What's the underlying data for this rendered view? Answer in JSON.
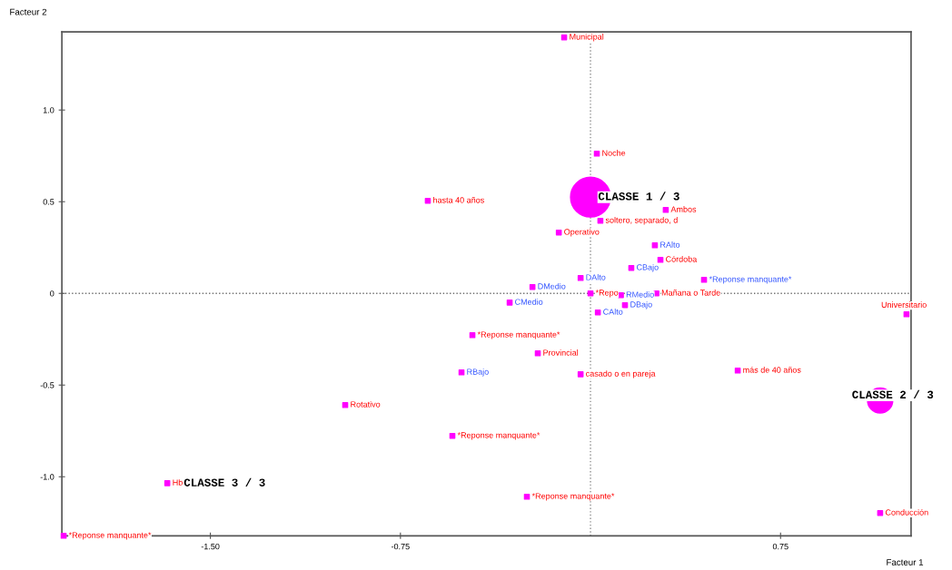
{
  "chart_data": {
    "type": "scatter",
    "xlabel": "Facteur 1",
    "ylabel": "Facteur 2",
    "xlim": [
      -2.086,
      1.265
    ],
    "ylim": [
      -1.322,
      1.426
    ],
    "xticks": [
      {
        "value": -1.5,
        "label": "-1.50"
      },
      {
        "value": -0.75,
        "label": "-0.75"
      },
      {
        "value": 0.75,
        "label": "0.75"
      }
    ],
    "yticks": [
      {
        "value": -1.0,
        "label": "-1.0"
      },
      {
        "value": -0.5,
        "label": "-0.5"
      },
      0,
      {
        "value": 0.5,
        "label": "0.5"
      },
      {
        "value": 1.0,
        "label": "1.0"
      }
    ],
    "grid": false,
    "legend": false,
    "ref_lines": [
      {
        "axis": "x",
        "value": 0,
        "color": "#909090",
        "line_style": "dotted"
      },
      {
        "axis": "y",
        "value": 0,
        "color": "#707070",
        "line_style": "dotted"
      }
    ],
    "series": [
      {
        "color": "#ff00ff",
        "marker": "square",
        "x": [
          -0.104,
          0.025,
          -0.642,
          0.297,
          0.039,
          -0.125,
          0.276,
          0.0,
          0.26,
          1.247,
          -0.466,
          -0.208,
          -0.039,
          0.581,
          -0.968,
          -0.545,
          -1.67,
          -0.251,
          1.143,
          -2.079
        ],
        "values": [
          1.396,
          0.762,
          0.505,
          0.455,
          0.396,
          0.332,
          0.183,
          0.0,
          0.0,
          -0.114,
          -0.228,
          -0.327,
          -0.441,
          -0.421,
          -0.609,
          -0.777,
          -1.035,
          -1.109,
          -1.198,
          -1.322
        ],
        "value_labels": [
          "Municipal",
          "Noche",
          "hasta 40 años",
          "Ambos",
          "soltero, separado, d",
          "Operativo",
          "Córdoba",
          "*Repo",
          "Mañana o Tarde",
          "Universitario",
          "*Reponse manquante*",
          "Provincial",
          "casado o en pareja",
          "más de 40 años",
          "Rotativo",
          "*Reponse manquante*",
          "Hb",
          "*Reponse manquante*",
          "Conducción",
          "*Reponse manquante*"
        ]
      },
      {
        "color": "#ff00ff",
        "marker": "square",
        "x": [
          0.254,
          0.161,
          0.448,
          -0.039,
          -0.229,
          0.12,
          -0.319,
          0.136,
          0.029,
          -0.509
        ],
        "values": [
          0.262,
          0.139,
          0.074,
          0.084,
          0.035,
          -0.01,
          -0.05,
          -0.064,
          -0.104,
          -0.431
        ],
        "value_labels": [
          "RAlto",
          "CBajo",
          "*Reponse manquante*",
          "DAlto",
          "DMedio",
          "RMedio",
          "CMedio",
          "DBajo",
          "CAlto",
          "RBajo"
        ]
      },
      {
        "type": "bubble",
        "color": "#ff00ff",
        "marker": "circle",
        "x": [
          0.0,
          1.143
        ],
        "values": [
          0.525,
          -0.584
        ],
        "sizes": [
          1,
          0.4
        ],
        "value_labels": [
          "CLASSE 1 / 3",
          "CLASSE 2 / 3"
        ]
      }
    ],
    "annotations": [
      "CLASSE 3 / 3"
    ]
  }
}
